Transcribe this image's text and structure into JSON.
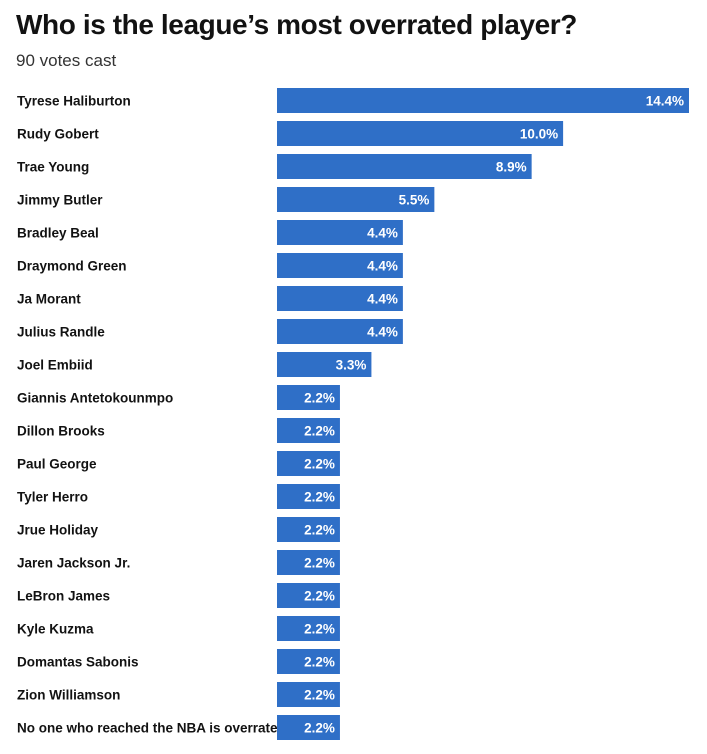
{
  "chart_data": {
    "type": "bar",
    "orientation": "horizontal",
    "title": "Who is the league’s most overrated player?",
    "subtitle": "90 votes cast",
    "bar_color": "#2f6fc7",
    "value_suffix": "%",
    "categories": [
      "Tyrese Haliburton",
      "Rudy Gobert",
      "Trae Young",
      "Jimmy Butler",
      "Bradley Beal",
      "Draymond Green",
      "Ja Morant",
      "Julius Randle",
      "Joel Embiid",
      "Giannis Antetokounmpo",
      "Dillon Brooks",
      "Paul George",
      "Tyler Herro",
      "Jrue Holiday",
      "Jaren Jackson Jr.",
      "LeBron James",
      "Kyle Kuzma",
      "Domantas Sabonis",
      "Zion Williamson",
      "No one who reached the NBA is overrated"
    ],
    "values": [
      14.4,
      10.0,
      8.9,
      5.5,
      4.4,
      4.4,
      4.4,
      4.4,
      3.3,
      2.2,
      2.2,
      2.2,
      2.2,
      2.2,
      2.2,
      2.2,
      2.2,
      2.2,
      2.2,
      2.2
    ],
    "value_labels": [
      "14.4%",
      "10.0%",
      "8.9%",
      "5.5%",
      "4.4%",
      "4.4%",
      "4.4%",
      "4.4%",
      "3.3%",
      "2.2%",
      "2.2%",
      "2.2%",
      "2.2%",
      "2.2%",
      "2.2%",
      "2.2%",
      "2.2%",
      "2.2%",
      "2.2%",
      "2.2%"
    ],
    "xlim": [
      0,
      14.4
    ]
  }
}
